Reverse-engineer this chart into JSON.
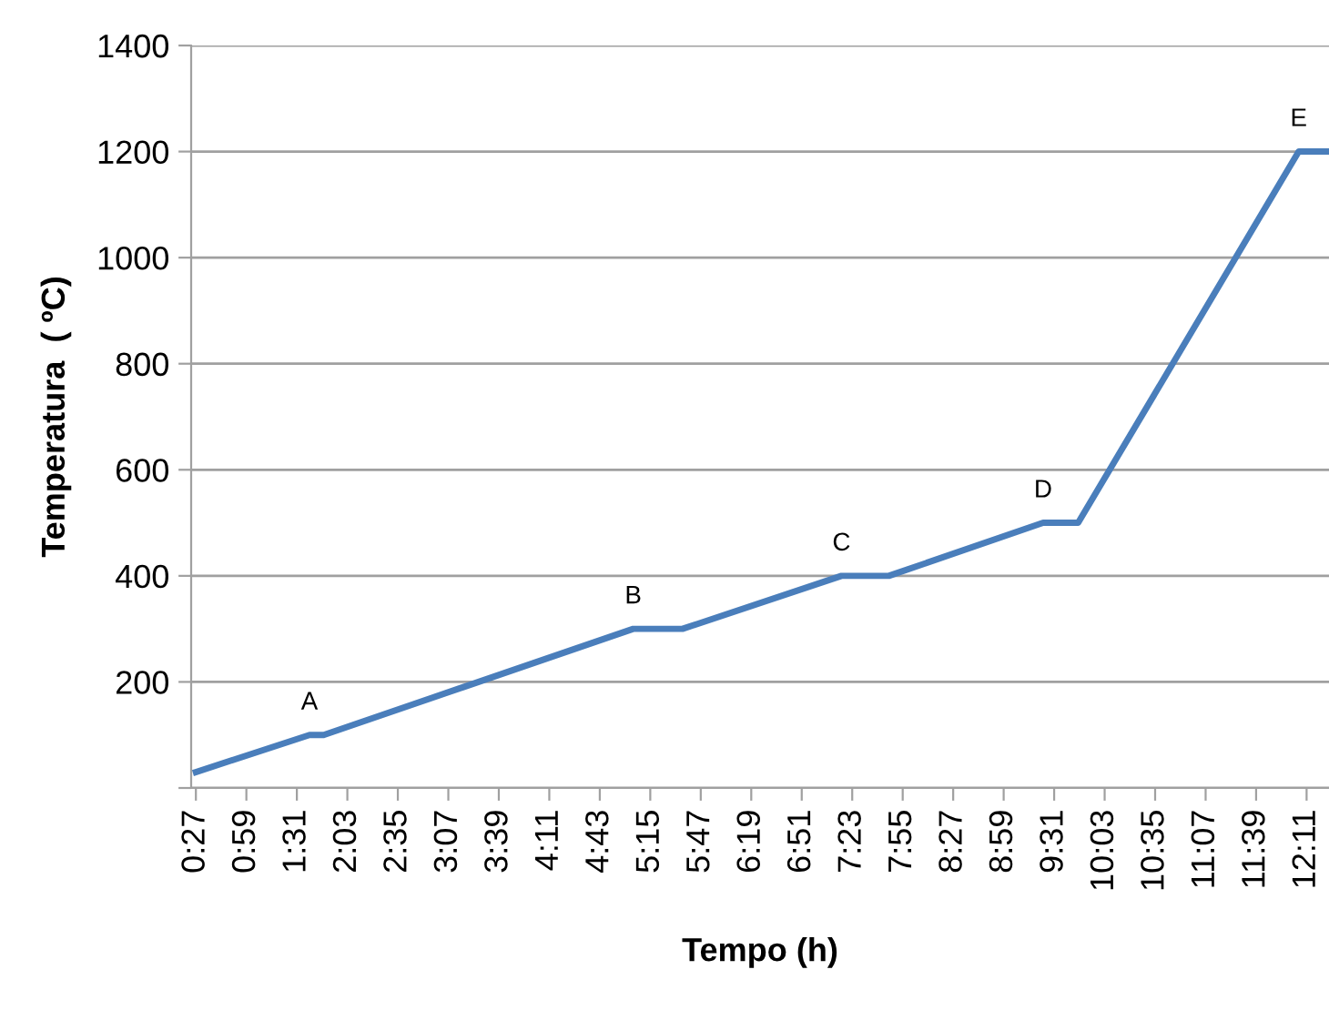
{
  "chart_data": {
    "type": "line",
    "xlabel": "Tempo (h)",
    "ylabel": "Temperatura  ( ºC)",
    "x": [
      0.45,
      1.65,
      1.8,
      5.07,
      5.59,
      7.27,
      7.77,
      9.4,
      9.77,
      12.1,
      12.42
    ],
    "series": [
      {
        "color": "#4a7ebb",
        "values": [
          30,
          100,
          100,
          300,
          300,
          400,
          400,
          500,
          500,
          1200,
          1200
        ]
      }
    ],
    "xlim": [
      0.4,
      12.42
    ],
    "xticks": [
      {
        "value": 0.45,
        "label": "0:27"
      },
      {
        "value": 0.9833,
        "label": "0:59"
      },
      {
        "value": 1.5167,
        "label": "1:31"
      },
      {
        "value": 2.05,
        "label": "2:03"
      },
      {
        "value": 2.5833,
        "label": "2:35"
      },
      {
        "value": 3.1167,
        "label": "3:07"
      },
      {
        "value": 3.65,
        "label": "3:39"
      },
      {
        "value": 4.1833,
        "label": "4:11"
      },
      {
        "value": 4.7167,
        "label": "4:43"
      },
      {
        "value": 5.25,
        "label": "5:15"
      },
      {
        "value": 5.7833,
        "label": "5:47"
      },
      {
        "value": 6.3167,
        "label": "6:19"
      },
      {
        "value": 6.85,
        "label": "6:51"
      },
      {
        "value": 7.3833,
        "label": "7:23"
      },
      {
        "value": 7.9167,
        "label": "7:55"
      },
      {
        "value": 8.45,
        "label": "8:27"
      },
      {
        "value": 8.9833,
        "label": "8:59"
      },
      {
        "value": 9.5167,
        "label": "9:31"
      },
      {
        "value": 10.05,
        "label": "10:03"
      },
      {
        "value": 10.5833,
        "label": "10:35"
      },
      {
        "value": 11.1167,
        "label": "11:07"
      },
      {
        "value": 11.65,
        "label": "11:39"
      },
      {
        "value": 12.1833,
        "label": "12:11"
      }
    ],
    "ylim": [
      0,
      1400
    ],
    "yticks": [
      {
        "value": 0,
        "label": null
      },
      200,
      400,
      600,
      800,
      1000,
      1200,
      1400
    ],
    "grid": "y",
    "marker": "none",
    "line_style": "solid",
    "annotations": [
      {
        "text": "A",
        "x": 1.65,
        "y": 100
      },
      {
        "text": "B",
        "x": 5.07,
        "y": 300
      },
      {
        "text": "C",
        "x": 7.27,
        "y": 400
      },
      {
        "text": "D",
        "x": 9.4,
        "y": 500
      },
      {
        "text": "E",
        "x": 12.1,
        "y": 1200
      }
    ]
  }
}
